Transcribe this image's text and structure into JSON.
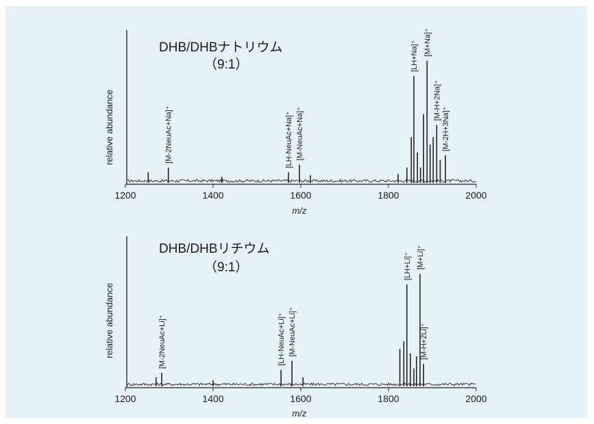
{
  "chart_data": [
    {
      "type": "line",
      "title": "DHB/DHBナトリウム",
      "subtitle": "（9:1）",
      "xlabel": "m/z",
      "ylabel": "relative abundance",
      "xlim": [
        1200,
        2000
      ],
      "ylim": [
        0,
        100
      ],
      "xticks": [
        1200,
        1400,
        1600,
        1800,
        2000
      ],
      "tick_labels": [
        "1200",
        "1400",
        "1600",
        "1800",
        "2000"
      ],
      "peaks": [
        {
          "mz": 1252,
          "y": 7
        },
        {
          "mz": 1298,
          "y": 10
        },
        {
          "mz": 1420,
          "y": 4
        },
        {
          "mz": 1572,
          "y": 7
        },
        {
          "mz": 1597,
          "y": 12
        },
        {
          "mz": 1622,
          "y": 5
        },
        {
          "mz": 1822,
          "y": 6
        },
        {
          "mz": 1842,
          "y": 10
        },
        {
          "mz": 1852,
          "y": 30
        },
        {
          "mz": 1858,
          "y": 70
        },
        {
          "mz": 1866,
          "y": 20
        },
        {
          "mz": 1873,
          "y": 10
        },
        {
          "mz": 1880,
          "y": 45
        },
        {
          "mz": 1888,
          "y": 80
        },
        {
          "mz": 1895,
          "y": 25
        },
        {
          "mz": 1902,
          "y": 30
        },
        {
          "mz": 1910,
          "y": 38
        },
        {
          "mz": 1918,
          "y": 15
        },
        {
          "mz": 1930,
          "y": 18
        }
      ],
      "annotations": [
        {
          "mz": 1298,
          "text": "[M-2NeuAc+Na]⁺"
        },
        {
          "mz": 1572,
          "text": "[LH-NeuAc+Na]⁺"
        },
        {
          "mz": 1597,
          "text": "[M-NeuAc+Na]⁺"
        },
        {
          "mz": 1858,
          "text": "[LH+Na]⁺"
        },
        {
          "mz": 1888,
          "text": "[M+Na]⁺"
        },
        {
          "mz": 1910,
          "text": "[M-H+2Na]⁺"
        },
        {
          "mz": 1930,
          "text": "[M-2H+3Na]⁺"
        }
      ]
    },
    {
      "type": "line",
      "title": "DHB/DHBリチウム",
      "subtitle": "（9:1）",
      "xlabel": "m/z",
      "ylabel": "relative abundance",
      "xlim": [
        1200,
        2000
      ],
      "ylim": [
        0,
        100
      ],
      "xticks": [
        1200,
        1400,
        1600,
        1800,
        2000
      ],
      "tick_labels": [
        "1200",
        "1400",
        "1600",
        "1800",
        "2000"
      ],
      "peaks": [
        {
          "mz": 1270,
          "y": 6
        },
        {
          "mz": 1283,
          "y": 9
        },
        {
          "mz": 1400,
          "y": 4
        },
        {
          "mz": 1555,
          "y": 11
        },
        {
          "mz": 1580,
          "y": 17
        },
        {
          "mz": 1605,
          "y": 6
        },
        {
          "mz": 1826,
          "y": 25
        },
        {
          "mz": 1835,
          "y": 30
        },
        {
          "mz": 1842,
          "y": 68
        },
        {
          "mz": 1850,
          "y": 22
        },
        {
          "mz": 1858,
          "y": 12
        },
        {
          "mz": 1864,
          "y": 20
        },
        {
          "mz": 1872,
          "y": 75
        },
        {
          "mz": 1880,
          "y": 15
        }
      ],
      "annotations": [
        {
          "mz": 1283,
          "text": "[M-2NeuAc+Li]⁺"
        },
        {
          "mz": 1555,
          "text": "[LH-NeuAc+Li]⁺"
        },
        {
          "mz": 1580,
          "text": "[M-NeuAc+Li]⁺"
        },
        {
          "mz": 1842,
          "text": "[LH+Li]⁺"
        },
        {
          "mz": 1872,
          "text": "[M+Li]⁺"
        },
        {
          "mz": 1880,
          "text": "[M-H+2Li]⁺"
        }
      ]
    }
  ]
}
